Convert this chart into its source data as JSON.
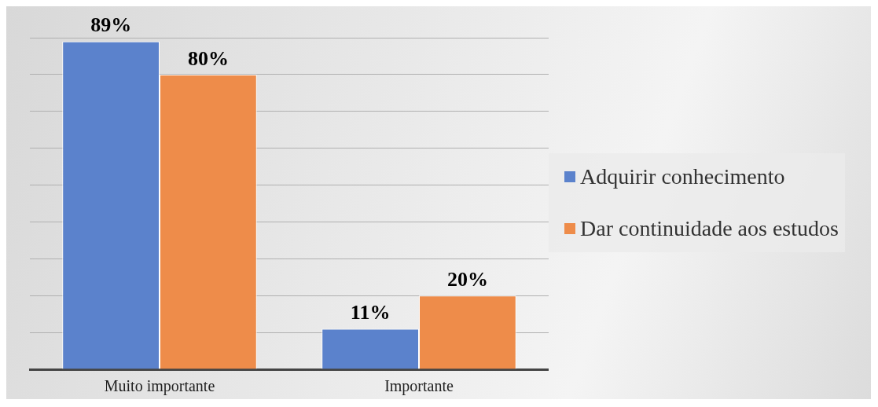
{
  "chart_data": {
    "type": "bar",
    "categories": [
      "Muito importante",
      "Importante"
    ],
    "series": [
      {
        "name": "Adquirir conhecimento",
        "color": "#5b82cc",
        "values": [
          89,
          11
        ],
        "value_labels": [
          "89%",
          "11%"
        ]
      },
      {
        "name": "Dar continuidade aos estudos",
        "color": "#ee8c4a",
        "values": [
          80,
          20
        ],
        "value_labels": [
          "80%",
          "20%"
        ]
      }
    ],
    "tick_labels": "x",
    "grid": "y",
    "legend": "right"
  }
}
